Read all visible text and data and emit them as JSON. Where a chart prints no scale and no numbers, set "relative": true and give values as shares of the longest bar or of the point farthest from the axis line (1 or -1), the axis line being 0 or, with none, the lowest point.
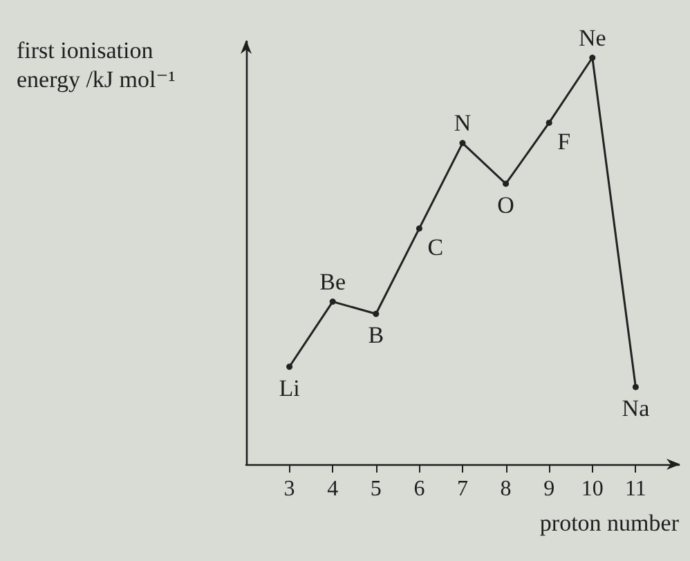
{
  "chart_data": {
    "type": "line",
    "xlabel": "proton number",
    "ylabel": "first ionisation energy /kJ mol⁻¹",
    "x": [
      3,
      4,
      5,
      6,
      7,
      8,
      9,
      10,
      11
    ],
    "values": [
      0.24,
      0.4,
      0.37,
      0.58,
      0.79,
      0.69,
      0.84,
      1,
      0.19
    ],
    "color": "#222222",
    "relative": true,
    "xlim": [
      2,
      12
    ],
    "xticks": [
      3,
      4,
      5,
      6,
      7,
      8,
      9,
      10,
      11
    ],
    "marker": "circle",
    "line_style": "solid",
    "grid": false,
    "annotations": [
      {
        "text": "Li",
        "x": 3,
        "y": 0.24
      },
      {
        "text": "Be",
        "x": 4,
        "y": 0.4
      },
      {
        "text": "B",
        "x": 5,
        "y": 0.37
      },
      {
        "text": "C",
        "x": 6,
        "y": 0.58
      },
      {
        "text": "N",
        "x": 7,
        "y": 0.79
      },
      {
        "text": "O",
        "x": 8,
        "y": 0.69
      },
      {
        "text": "F",
        "x": 9,
        "y": 0.84
      },
      {
        "text": "Ne",
        "x": 10,
        "y": 1
      },
      {
        "text": "Na",
        "x": 11,
        "y": 0.19
      }
    ]
  }
}
